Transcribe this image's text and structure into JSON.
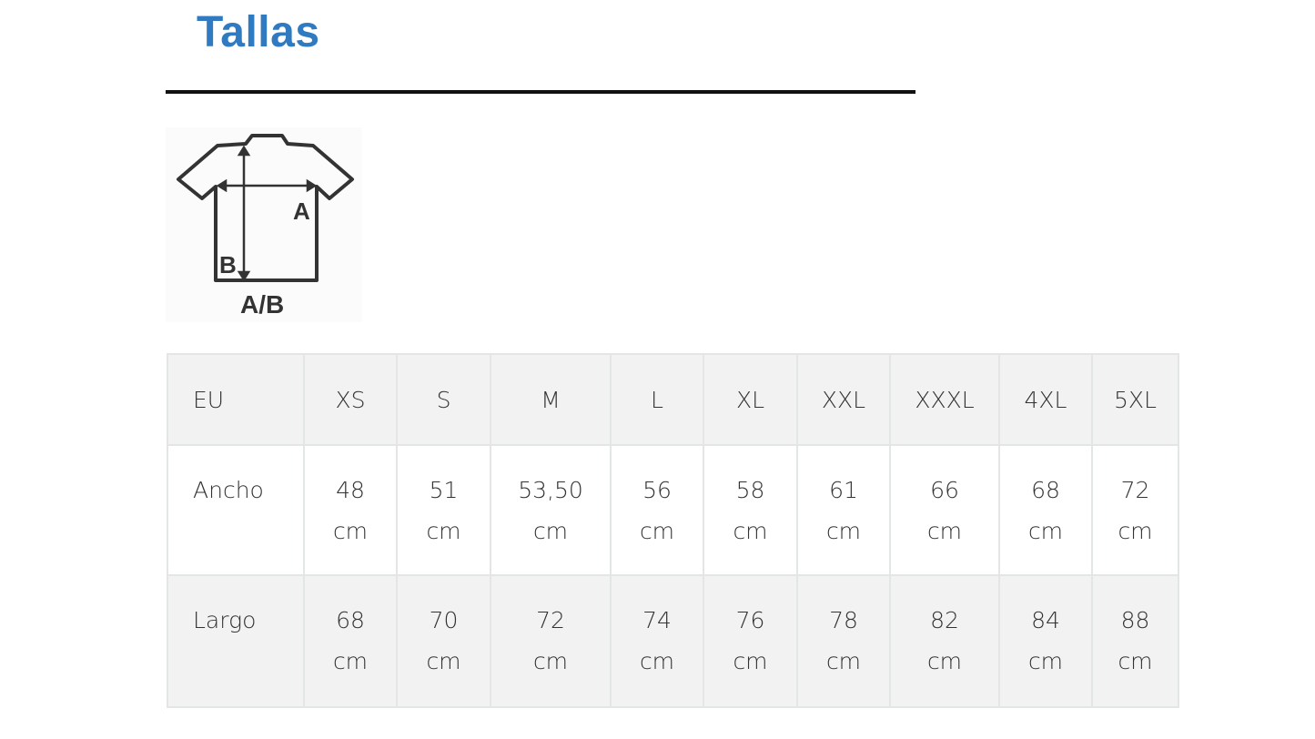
{
  "title": "Tallas",
  "diagram": {
    "label_a": "A",
    "label_b": "B",
    "caption": "A/B"
  },
  "table": {
    "header": [
      "EU",
      "XS",
      "S",
      "M",
      "L",
      "XL",
      "XXL",
      "XXXL",
      "4XL",
      "5XL"
    ],
    "rows": [
      [
        "Ancho",
        "48 cm",
        "51 cm",
        "53,50 cm",
        "56 cm",
        "58 cm",
        "61 cm",
        "66 cm",
        "68 cm",
        "72 cm"
      ],
      [
        "Largo",
        "68 cm",
        "70 cm",
        "72 cm",
        "74 cm",
        "76 cm",
        "78 cm",
        "82 cm",
        "84 cm",
        "88 cm"
      ]
    ]
  }
}
